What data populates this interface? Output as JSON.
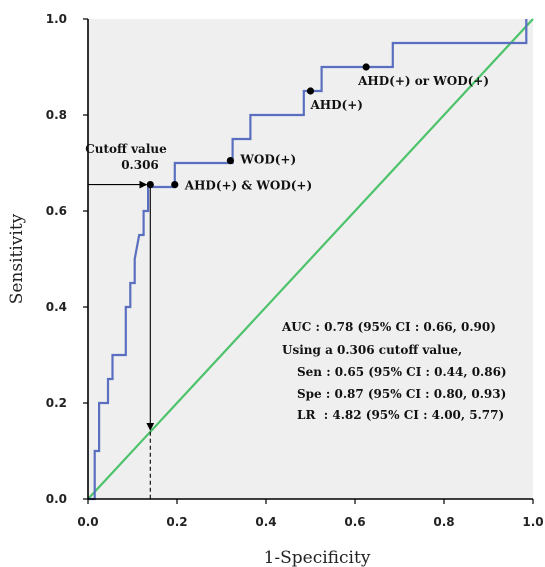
{
  "chart_data": {
    "type": "line",
    "xlabel": "1-Specificity",
    "ylabel": "Sensitivity",
    "xlim": [
      0,
      1
    ],
    "ylim": [
      0,
      1
    ],
    "x_ticks": [
      "0.0",
      "0.2",
      "0.4",
      "0.6",
      "0.8",
      "1.0"
    ],
    "y_ticks": [
      "0.0",
      "0.2",
      "0.4",
      "0.6",
      "0.8",
      "1.0"
    ],
    "grid": false,
    "colors": {
      "roc": "#5b6fc0",
      "reference": "#4cc36a",
      "background": "#efefef"
    },
    "series": [
      {
        "values": [
          [
            0.0,
            0.0
          ],
          [
            0.015,
            0.0
          ],
          [
            0.015,
            0.1
          ],
          [
            0.025,
            0.1
          ],
          [
            0.025,
            0.2
          ],
          [
            0.045,
            0.2
          ],
          [
            0.045,
            0.25
          ],
          [
            0.055,
            0.25
          ],
          [
            0.055,
            0.3
          ],
          [
            0.085,
            0.3
          ],
          [
            0.085,
            0.4
          ],
          [
            0.095,
            0.4
          ],
          [
            0.095,
            0.45
          ],
          [
            0.105,
            0.45
          ],
          [
            0.105,
            0.5
          ],
          [
            0.115,
            0.55
          ],
          [
            0.125,
            0.55
          ],
          [
            0.125,
            0.6
          ],
          [
            0.135,
            0.6
          ],
          [
            0.135,
            0.65
          ],
          [
            0.195,
            0.65
          ],
          [
            0.195,
            0.7
          ],
          [
            0.325,
            0.7
          ],
          [
            0.325,
            0.75
          ],
          [
            0.365,
            0.75
          ],
          [
            0.365,
            0.8
          ],
          [
            0.485,
            0.8
          ],
          [
            0.485,
            0.85
          ],
          [
            0.525,
            0.85
          ],
          [
            0.525,
            0.9
          ],
          [
            0.685,
            0.9
          ],
          [
            0.685,
            0.95
          ],
          [
            0.985,
            0.95
          ],
          [
            0.985,
            1.0
          ]
        ]
      },
      {
        "values": [
          [
            0,
            0
          ],
          [
            1,
            1
          ]
        ]
      }
    ],
    "points": [
      {
        "x": 0.14,
        "y": 0.655,
        "label": ""
      },
      {
        "x": 0.195,
        "y": 0.655,
        "label": "AHD(+) & WOD(+)"
      },
      {
        "x": 0.32,
        "y": 0.705,
        "label": "WOD(+)"
      },
      {
        "x": 0.5,
        "y": 0.85,
        "label": "AHD(+)"
      },
      {
        "x": 0.625,
        "y": 0.9,
        "label": "AHD(+) or WOD(+)"
      }
    ],
    "cutoff": {
      "x": 0.14,
      "y": 0.655,
      "label_line1": "Cutoff value",
      "label_line2": "0.306"
    },
    "stats": [
      "AUC : 0.78 (95% CI : 0.66, 0.90)",
      "Using a 0.306 cutoff value,",
      "Sen : 0.65 (95% CI : 0.44, 0.86)",
      "Spe : 0.87 (95% CI : 0.80, 0.93)",
      "LR  : 4.82 (95% CI : 4.00, 5.77)"
    ]
  }
}
